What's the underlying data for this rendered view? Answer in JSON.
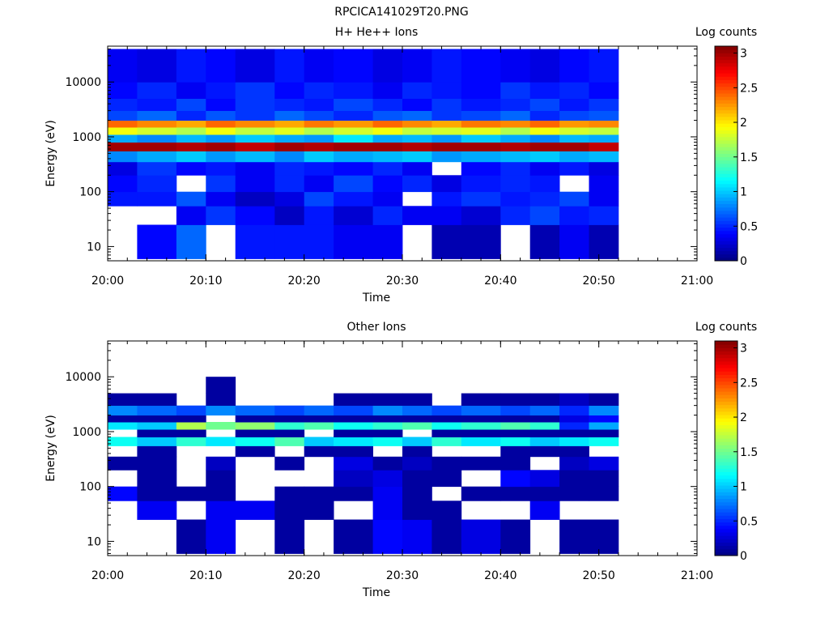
{
  "window": {
    "filename": "RPCICA141029T20.PNG"
  },
  "colorbar_ticks": [
    "0",
    "0.5",
    "1",
    "1.5",
    "2",
    "2.5",
    "3"
  ],
  "chart_data": [
    {
      "type": "heatmap",
      "title": "H+ He++ Ions",
      "xlabel": "Time",
      "ylabel": "Energy (eV)",
      "colorbar_label": "Log counts",
      "x_range": [
        "20:00",
        "21:00"
      ],
      "x_ticks": [
        "20:00",
        "20:10",
        "20:20",
        "20:30",
        "20:40",
        "20:50",
        "21:00"
      ],
      "y_scale": "log",
      "y_ticks": [
        "10",
        "100",
        "1000",
        "10000"
      ],
      "z_range": [
        0,
        3.1
      ],
      "colormap": "jet",
      "time_bins": [
        "20:00",
        "20:03",
        "20:07",
        "20:10",
        "20:13",
        "20:17",
        "20:20",
        "20:23",
        "20:27",
        "20:30",
        "20:33",
        "20:36",
        "20:40",
        "20:43",
        "20:46",
        "20:49",
        "20:52"
      ],
      "energy_bins_eV": [
        6,
        25,
        55,
        100,
        200,
        350,
        550,
        800,
        1100,
        1500,
        2000,
        3000,
        5000,
        10000,
        40000
      ],
      "note_rows": "rows follow energy_bins_eV from the lowest band upward; values are log counts, null = no data",
      "values": [
        [
          null,
          0.4,
          0.7,
          null,
          0.45,
          0.45,
          0.45,
          0.35,
          0.35,
          null,
          0.15,
          0.15,
          null,
          0.15,
          0.35,
          0.15
        ],
        [
          null,
          null,
          0.35,
          0.55,
          0.4,
          0.2,
          0.45,
          0.25,
          0.5,
          0.35,
          0.35,
          0.25,
          0.5,
          0.6,
          0.45,
          0.5
        ],
        [
          0.45,
          0.45,
          0.65,
          0.35,
          0.2,
          0.3,
          0.6,
          0.45,
          0.35,
          null,
          0.45,
          0.55,
          0.45,
          0.5,
          0.6,
          0.35
        ],
        [
          0.4,
          0.5,
          null,
          0.55,
          0.35,
          0.5,
          0.35,
          0.6,
          0.4,
          0.5,
          0.3,
          0.45,
          0.5,
          0.45,
          null,
          0.35
        ],
        [
          0.3,
          0.55,
          0.4,
          0.45,
          0.35,
          0.5,
          0.45,
          0.4,
          0.5,
          0.35,
          null,
          0.4,
          0.5,
          0.35,
          0.45,
          0.3
        ],
        [
          0.8,
          0.9,
          1.0,
          0.85,
          0.95,
          0.8,
          1.0,
          0.9,
          0.95,
          1.0,
          0.85,
          0.9,
          0.95,
          1.0,
          0.9,
          0.95
        ],
        [
          3.0,
          3.0,
          2.95,
          3.0,
          2.9,
          3.0,
          2.95,
          3.0,
          3.0,
          2.95,
          3.0,
          3.0,
          2.95,
          3.0,
          3.0,
          2.9
        ],
        [
          0.9,
          0.8,
          0.95,
          0.85,
          1.0,
          0.9,
          0.85,
          1.1,
          0.9,
          0.95,
          0.85,
          1.0,
          0.9,
          0.8,
          0.95,
          0.9
        ],
        [
          1.9,
          1.8,
          1.7,
          1.9,
          1.75,
          1.85,
          1.7,
          1.8,
          1.9,
          1.75,
          1.8,
          1.85,
          1.7,
          1.9,
          1.8,
          1.75
        ],
        [
          2.4,
          2.3,
          2.2,
          2.4,
          2.3,
          2.2,
          2.35,
          2.25,
          2.4,
          2.3,
          2.2,
          2.35,
          2.3,
          2.4,
          2.25,
          2.3
        ],
        [
          0.6,
          0.7,
          0.5,
          0.65,
          0.55,
          0.7,
          0.6,
          0.5,
          0.65,
          0.7,
          0.55,
          0.6,
          0.7,
          0.5,
          0.6,
          0.65
        ],
        [
          0.5,
          0.45,
          0.6,
          0.4,
          0.55,
          0.5,
          0.45,
          0.6,
          0.5,
          0.4,
          0.55,
          0.45,
          0.5,
          0.6,
          0.45,
          0.55
        ],
        [
          0.4,
          0.5,
          0.35,
          0.45,
          0.55,
          0.4,
          0.5,
          0.45,
          0.35,
          0.5,
          0.45,
          0.4,
          0.55,
          0.45,
          0.5,
          0.4
        ],
        [
          0.35,
          0.3,
          0.45,
          0.4,
          0.3,
          0.45,
          0.35,
          0.4,
          0.3,
          0.35,
          0.45,
          0.4,
          0.35,
          0.3,
          0.4,
          0.45
        ]
      ]
    },
    {
      "type": "heatmap",
      "title": "Other Ions",
      "xlabel": "Time",
      "ylabel": "Energy (eV)",
      "colorbar_label": "Log counts",
      "x_range": [
        "20:00",
        "21:00"
      ],
      "x_ticks": [
        "20:00",
        "20:10",
        "20:20",
        "20:30",
        "20:40",
        "20:50",
        "21:00"
      ],
      "y_scale": "log",
      "y_ticks": [
        "10",
        "100",
        "1000",
        "10000"
      ],
      "z_range": [
        0,
        3.1
      ],
      "colormap": "jet",
      "time_bins": [
        "20:00",
        "20:03",
        "20:07",
        "20:10",
        "20:13",
        "20:17",
        "20:20",
        "20:23",
        "20:27",
        "20:30",
        "20:33",
        "20:36",
        "20:40",
        "20:43",
        "20:46",
        "20:49",
        "20:52"
      ],
      "energy_bins_eV": [
        6,
        25,
        55,
        100,
        200,
        350,
        550,
        800,
        1100,
        1500,
        2000,
        3000,
        5000,
        10000,
        40000
      ],
      "note_rows": "rows follow energy_bins_eV from the lowest band upward; values are log counts, null = no data",
      "values": [
        [
          null,
          null,
          0.1,
          0.35,
          null,
          0.1,
          null,
          0.1,
          0.4,
          0.35,
          0.1,
          0.3,
          0.1,
          null,
          0.1,
          0.1
        ],
        [
          null,
          0.35,
          null,
          0.35,
          0.35,
          0.1,
          0.1,
          null,
          0.35,
          0.1,
          0.1,
          null,
          null,
          0.35,
          null,
          null
        ],
        [
          0.4,
          0.1,
          0.1,
          0.1,
          null,
          0.1,
          0.1,
          0.1,
          0.35,
          0.1,
          null,
          0.1,
          0.1,
          0.1,
          0.1,
          0.1
        ],
        [
          null,
          0.1,
          null,
          0.1,
          null,
          null,
          null,
          0.2,
          0.3,
          0.1,
          0.1,
          null,
          0.4,
          0.3,
          0.1,
          0.1
        ],
        [
          0.1,
          0.1,
          null,
          0.2,
          null,
          0.1,
          null,
          0.3,
          0.1,
          0.2,
          0.1,
          0.1,
          0.1,
          null,
          0.2,
          0.3
        ],
        [
          null,
          0.1,
          null,
          null,
          0.1,
          null,
          0.1,
          0.1,
          null,
          0.1,
          null,
          null,
          0.1,
          0.1,
          0.1,
          null
        ],
        [
          1.2,
          1.0,
          1.3,
          1.1,
          1.2,
          1.4,
          1.0,
          1.1,
          1.2,
          1.0,
          1.3,
          1.1,
          1.2,
          1.0,
          1.1,
          1.2
        ],
        [
          null,
          0.1,
          0.1,
          null,
          0.1,
          0.1,
          null,
          0.1,
          0.1,
          null,
          0.1,
          0.1,
          0.1,
          0.1,
          0.1,
          0.1
        ],
        [
          1.1,
          1.0,
          1.7,
          1.5,
          1.6,
          1.3,
          1.4,
          1.2,
          1.3,
          1.4,
          1.2,
          1.3,
          1.4,
          1.3,
          0.5,
          0.9
        ],
        [
          0.1,
          0.1,
          0.1,
          null,
          0.1,
          0.1,
          0.1,
          0.1,
          0.1,
          0.1,
          0.1,
          0.1,
          0.1,
          0.1,
          0.3,
          0.4
        ],
        [
          0.8,
          0.7,
          0.6,
          0.8,
          0.7,
          0.6,
          0.7,
          0.6,
          0.8,
          0.7,
          0.6,
          0.7,
          0.6,
          0.7,
          0.5,
          0.8
        ],
        [
          0.1,
          0.1,
          null,
          0.1,
          null,
          null,
          null,
          0.1,
          0.1,
          0.1,
          null,
          0.1,
          0.1,
          0.1,
          0.2,
          0.1
        ],
        [
          null,
          null,
          null,
          0.1,
          null,
          null,
          null,
          null,
          null,
          null,
          null,
          null,
          null,
          null,
          null,
          null
        ],
        [
          null,
          null,
          null,
          null,
          null,
          null,
          null,
          null,
          null,
          null,
          null,
          null,
          null,
          null,
          null,
          null
        ]
      ]
    }
  ]
}
